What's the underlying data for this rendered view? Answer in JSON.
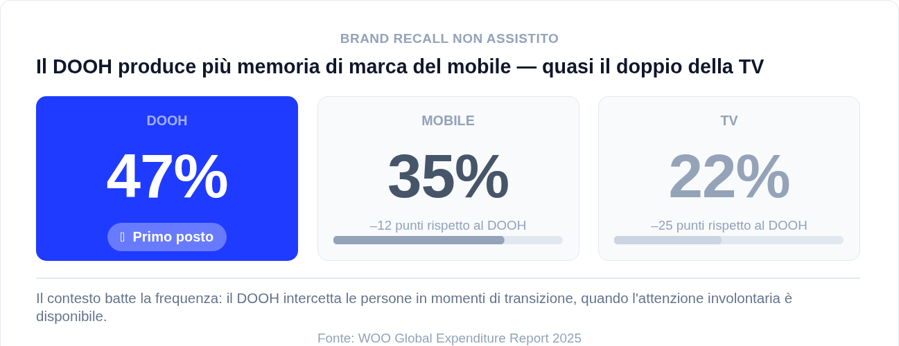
{
  "chart_data": {
    "type": "other",
    "subtitle": "BRAND RECALL NON ASSISTITO",
    "title": "Il DOOH produce più memoria di marca del mobile — quasi il doppio della TV",
    "categories": [
      "DOOH",
      "MOBILE",
      "TV"
    ],
    "values": [
      47,
      35,
      22
    ],
    "value_labels": [
      "47%",
      "35%",
      "22%"
    ],
    "colors": [
      "#1f3bff",
      "#f8fafc",
      "#f8fafc"
    ],
    "annotations": [
      "Primo posto",
      "–12 punti rispetto al DOOH",
      "–25 punti rispetto al DOOH",
      "Il contesto batte la frequenza: il DOOH intercetta le persone in momenti di transizione, quando l'attenzione involontaria è disponibile.",
      "Fonte: WOO Global Expenditure Report 2025"
    ]
  }
}
